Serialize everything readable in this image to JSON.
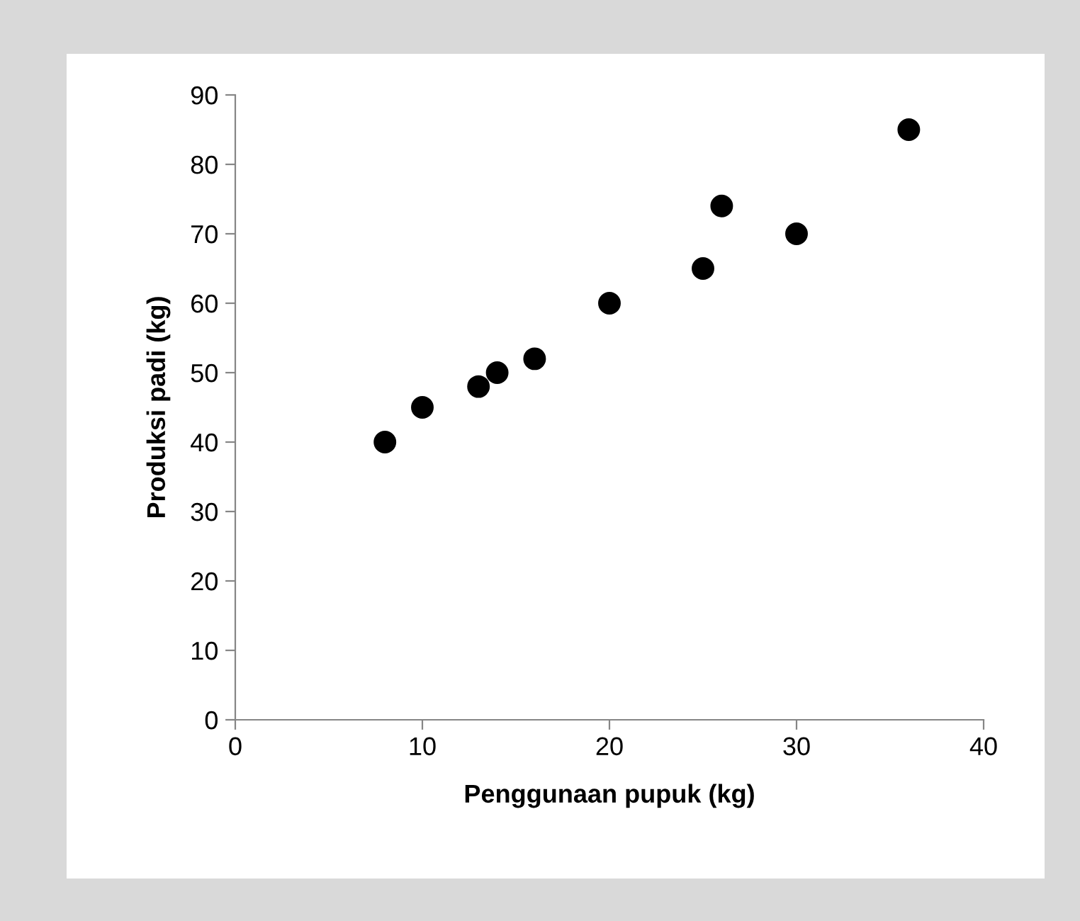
{
  "chart_data": {
    "type": "scatter",
    "xlabel": "Penggunaan pupuk (kg)",
    "ylabel": "Produksi padi (kg)",
    "x": [
      8,
      10,
      13,
      14,
      16,
      20,
      25,
      26,
      30,
      36
    ],
    "series": [
      {
        "color": "#000000",
        "values": [
          40,
          45,
          48,
          50,
          52,
          60,
          65,
          74,
          70,
          85
        ]
      }
    ],
    "marker": "circle",
    "grid": false,
    "legend": false,
    "xlim": [
      0,
      40
    ],
    "xticks": [
      0,
      10,
      20,
      30,
      40
    ],
    "ylim": [
      0,
      90
    ],
    "yticks": [
      0,
      10,
      20,
      30,
      40,
      50,
      60,
      70,
      80,
      90
    ]
  }
}
